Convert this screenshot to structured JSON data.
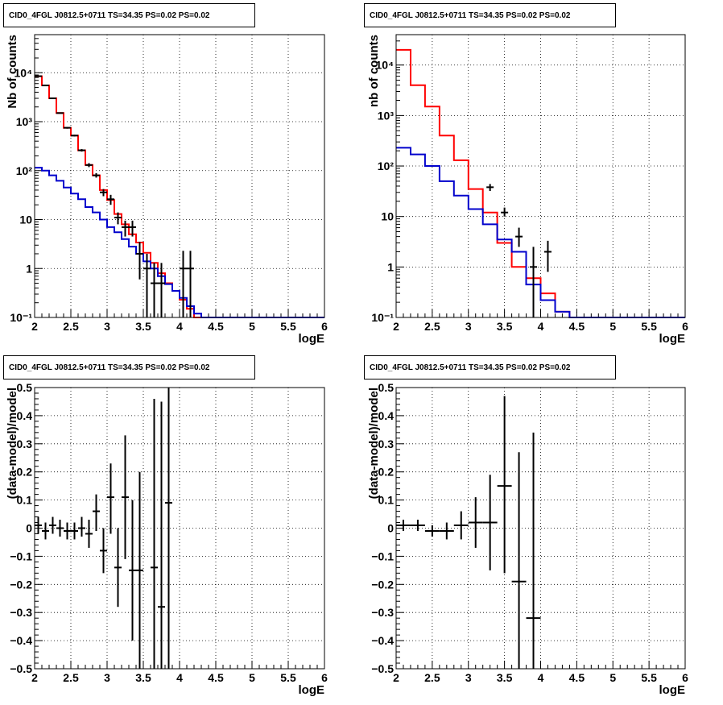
{
  "chart_data": [
    {
      "type": "line",
      "title": "CID0_4FGL J0812.5+0711 TS=34.35 PS=0.02 PS=0.02",
      "xlabel": "logE",
      "ylabel": "Nb of counts",
      "xlim": [
        2,
        6
      ],
      "ylim": [
        0.1,
        60000
      ],
      "yscale": "log",
      "grid": true,
      "xticks": [
        "2",
        "2.5",
        "3",
        "3.5",
        "4",
        "4.5",
        "5",
        "5.5",
        "6"
      ],
      "yticks": [
        {
          "value": 0.1,
          "label": "10⁻¹"
        },
        {
          "value": 1,
          "label": "1"
        },
        {
          "value": 10,
          "label": "10"
        },
        {
          "value": 100,
          "label": "10²"
        },
        {
          "value": 1000,
          "label": "10³"
        },
        {
          "value": 10000,
          "label": "10⁴"
        }
      ],
      "bin_edges": [
        2,
        2.1,
        2.2,
        2.3,
        2.4,
        2.5,
        2.6,
        2.7,
        2.8,
        2.9,
        3,
        3.1,
        3.2,
        3.3,
        3.4,
        3.5,
        3.6,
        3.7,
        3.8,
        3.9,
        4,
        4.1,
        4.2,
        4.3,
        4.4,
        4.5,
        4.6,
        4.7,
        4.8,
        4.9,
        5,
        5.1,
        5.2,
        5.3,
        5.4,
        5.5,
        5.6,
        5.7,
        5.8,
        5.9,
        6
      ],
      "series": [
        {
          "color": "#ff0000",
          "kind": "step",
          "values": [
            8500,
            5500,
            3000,
            1500,
            750,
            520,
            260,
            130,
            80,
            40,
            25,
            13,
            8,
            5,
            3.4,
            2.1,
            1.3,
            0.8,
            0.5,
            0.35,
            0.23,
            0.15,
            0.1,
            0.1,
            0.1,
            0.1,
            0.1,
            0.1,
            0.1,
            0.1,
            0.1,
            0.1,
            0.1,
            0.1,
            0.1,
            0.1,
            0.1,
            0.1,
            0.1,
            0.1
          ]
        },
        {
          "color": "#0000cc",
          "kind": "step",
          "values": [
            115,
            100,
            80,
            62,
            45,
            34,
            26,
            18,
            14,
            10,
            7,
            5.5,
            4,
            2.8,
            2,
            1.4,
            1,
            0.7,
            0.48,
            0.35,
            0.25,
            0.17,
            0.12,
            0.1,
            0.1,
            0.1,
            0.1,
            0.1,
            0.1,
            0.1,
            0.1,
            0.1,
            0.1,
            0.1,
            0.1,
            0.1,
            0.1,
            0.1,
            0.1,
            0.1
          ]
        },
        {
          "color": "#000000",
          "kind": "points",
          "x": [
            2.05,
            2.15,
            2.25,
            2.35,
            2.45,
            2.55,
            2.65,
            2.75,
            2.85,
            2.95,
            3.05,
            3.15,
            3.25,
            3.35,
            3.45,
            3.55,
            3.65,
            3.75,
            4.05,
            4.15
          ],
          "y": [
            8500,
            5500,
            3000,
            1500,
            750,
            520,
            260,
            130,
            80,
            36,
            26,
            11,
            7,
            7,
            2,
            1,
            0.5,
            0.5,
            1,
            1
          ],
          "ylo": [
            8300,
            5350,
            2900,
            1460,
            720,
            500,
            245,
            118,
            72,
            30,
            20,
            8,
            4.5,
            4.5,
            0.6,
            0.1,
            0.1,
            0.1,
            0.1,
            0.1
          ],
          "yhi": [
            8700,
            5650,
            3100,
            1540,
            780,
            540,
            275,
            142,
            89,
            42,
            32,
            14,
            9.5,
            9.5,
            3.5,
            2,
            1.3,
            1.3,
            2.3,
            2.3
          ]
        }
      ]
    },
    {
      "type": "line",
      "title": "CID0_4FGL J0812.5+0711 TS=34.35 PS=0.02 PS=0.02",
      "xlabel": "logE",
      "ylabel": "nb of counts",
      "xlim": [
        2,
        6
      ],
      "ylim": [
        0.1,
        40000
      ],
      "yscale": "log",
      "grid": true,
      "xticks": [
        "2",
        "2.5",
        "3",
        "3.5",
        "4",
        "4.5",
        "5",
        "5.5",
        "6"
      ],
      "yticks": [
        {
          "value": 0.1,
          "label": "10⁻¹"
        },
        {
          "value": 1,
          "label": "1"
        },
        {
          "value": 10,
          "label": "10"
        },
        {
          "value": 100,
          "label": "10²"
        },
        {
          "value": 1000,
          "label": "10³"
        },
        {
          "value": 10000,
          "label": "10⁴"
        }
      ],
      "bin_edges": [
        2,
        2.2,
        2.4,
        2.6,
        2.8,
        3,
        3.2,
        3.4,
        3.6,
        3.8,
        4,
        4.2,
        4.4,
        4.6,
        4.8,
        5,
        5.2,
        5.4,
        5.6,
        5.8,
        6
      ],
      "series": [
        {
          "color": "#ff0000",
          "kind": "step",
          "values": [
            20000,
            4000,
            1500,
            400,
            130,
            35,
            12,
            3,
            1,
            0.6,
            0.3,
            0.13,
            0.1,
            0.1,
            0.1,
            0.1,
            0.1,
            0.1,
            0.1,
            0.1
          ]
        },
        {
          "color": "#0000cc",
          "kind": "step",
          "values": [
            230,
            170,
            100,
            50,
            26,
            14,
            7,
            3.5,
            2,
            0.45,
            0.22,
            0.13,
            0.1,
            0.1,
            0.1,
            0.1,
            0.1,
            0.1,
            0.1,
            0.1
          ]
        },
        {
          "color": "#000000",
          "kind": "points",
          "x": [
            3.3,
            3.5,
            3.7,
            3.9,
            4.1
          ],
          "y": [
            38,
            12,
            4,
            1,
            2
          ],
          "ylo": [
            32,
            10,
            2.5,
            0.1,
            0.8
          ],
          "yhi": [
            44,
            15,
            6,
            2.5,
            3.3
          ]
        }
      ]
    },
    {
      "type": "scatter",
      "title": "CID0_4FGL J0812.5+0711 TS=34.35 PS=0.02 PS=0.02",
      "xlabel": "logE",
      "ylabel": "(data-model)/model",
      "xlim": [
        2,
        6
      ],
      "ylim": [
        -0.5,
        0.5
      ],
      "grid": true,
      "xticks": [
        "2",
        "2.5",
        "3",
        "3.5",
        "4",
        "4.5",
        "5",
        "5.5",
        "6"
      ],
      "yticks": [
        {
          "value": -0.5,
          "label": "−0.5"
        },
        {
          "value": -0.4,
          "label": "−0.4"
        },
        {
          "value": -0.3,
          "label": "−0.3"
        },
        {
          "value": -0.2,
          "label": "−0.2"
        },
        {
          "value": -0.1,
          "label": "−0.1"
        },
        {
          "value": 0,
          "label": "0"
        },
        {
          "value": 0.1,
          "label": "0.1"
        },
        {
          "value": 0.2,
          "label": "0.2"
        },
        {
          "value": 0.3,
          "label": "0.3"
        },
        {
          "value": 0.4,
          "label": "0.4"
        },
        {
          "value": 0.5,
          "label": "0.5"
        }
      ],
      "series": [
        {
          "color": "#000000",
          "x": [
            2.05,
            2.15,
            2.25,
            2.35,
            2.45,
            2.55,
            2.65,
            2.75,
            2.85,
            2.95,
            3.05,
            3.15,
            3.25,
            3.35,
            3.45,
            3.65,
            3.75,
            3.85
          ],
          "y": [
            0.01,
            -0.01,
            0.01,
            0.0,
            -0.01,
            -0.01,
            0.0,
            -0.02,
            0.06,
            -0.08,
            0.11,
            -0.14,
            0.11,
            -0.15,
            -0.15,
            -0.14,
            -0.28,
            0.09
          ],
          "xerr": 0.05,
          "ylo": [
            -0.02,
            -0.04,
            -0.02,
            -0.03,
            -0.04,
            -0.04,
            -0.03,
            -0.07,
            -0.01,
            -0.16,
            -0.02,
            -0.28,
            -0.11,
            -0.4,
            -0.5,
            -0.5,
            -0.5,
            -0.5
          ],
          "yhi": [
            0.04,
            0.02,
            0.04,
            0.03,
            0.02,
            0.02,
            0.04,
            0.03,
            0.12,
            0.0,
            0.23,
            0.0,
            0.33,
            0.1,
            0.2,
            0.46,
            0.45,
            0.5
          ]
        }
      ]
    },
    {
      "type": "scatter",
      "title": "CID0_4FGL J0812.5+0711 TS=34.35 PS=0.02 PS=0.02",
      "xlabel": "logE",
      "ylabel": "(data-model)/model",
      "xlim": [
        2,
        6
      ],
      "ylim": [
        -0.5,
        0.5
      ],
      "grid": true,
      "xticks": [
        "2",
        "2.5",
        "3",
        "3.5",
        "4",
        "4.5",
        "5",
        "5.5",
        "6"
      ],
      "yticks": [
        {
          "value": -0.5,
          "label": "−0.5"
        },
        {
          "value": -0.4,
          "label": "−0.4"
        },
        {
          "value": -0.3,
          "label": "−0.3"
        },
        {
          "value": -0.2,
          "label": "−0.2"
        },
        {
          "value": -0.1,
          "label": "−0.1"
        },
        {
          "value": 0,
          "label": "0"
        },
        {
          "value": 0.1,
          "label": "0.1"
        },
        {
          "value": 0.2,
          "label": "0.2"
        },
        {
          "value": 0.3,
          "label": "0.3"
        },
        {
          "value": 0.4,
          "label": "0.4"
        },
        {
          "value": 0.5,
          "label": "0.5"
        }
      ],
      "series": [
        {
          "color": "#000000",
          "x": [
            2.1,
            2.3,
            2.5,
            2.7,
            2.9,
            3.1,
            3.3,
            3.5,
            3.7,
            3.9
          ],
          "y": [
            0.01,
            0.01,
            -0.01,
            -0.01,
            0.01,
            0.02,
            0.02,
            0.15,
            -0.19,
            -0.32
          ],
          "xerr": 0.1,
          "ylo": [
            -0.01,
            -0.01,
            -0.03,
            -0.04,
            -0.04,
            -0.07,
            -0.15,
            -0.16,
            -0.5,
            -0.5
          ],
          "yhi": [
            0.03,
            0.03,
            0.01,
            0.02,
            0.06,
            0.11,
            0.19,
            0.47,
            0.27,
            0.34
          ]
        }
      ]
    }
  ]
}
